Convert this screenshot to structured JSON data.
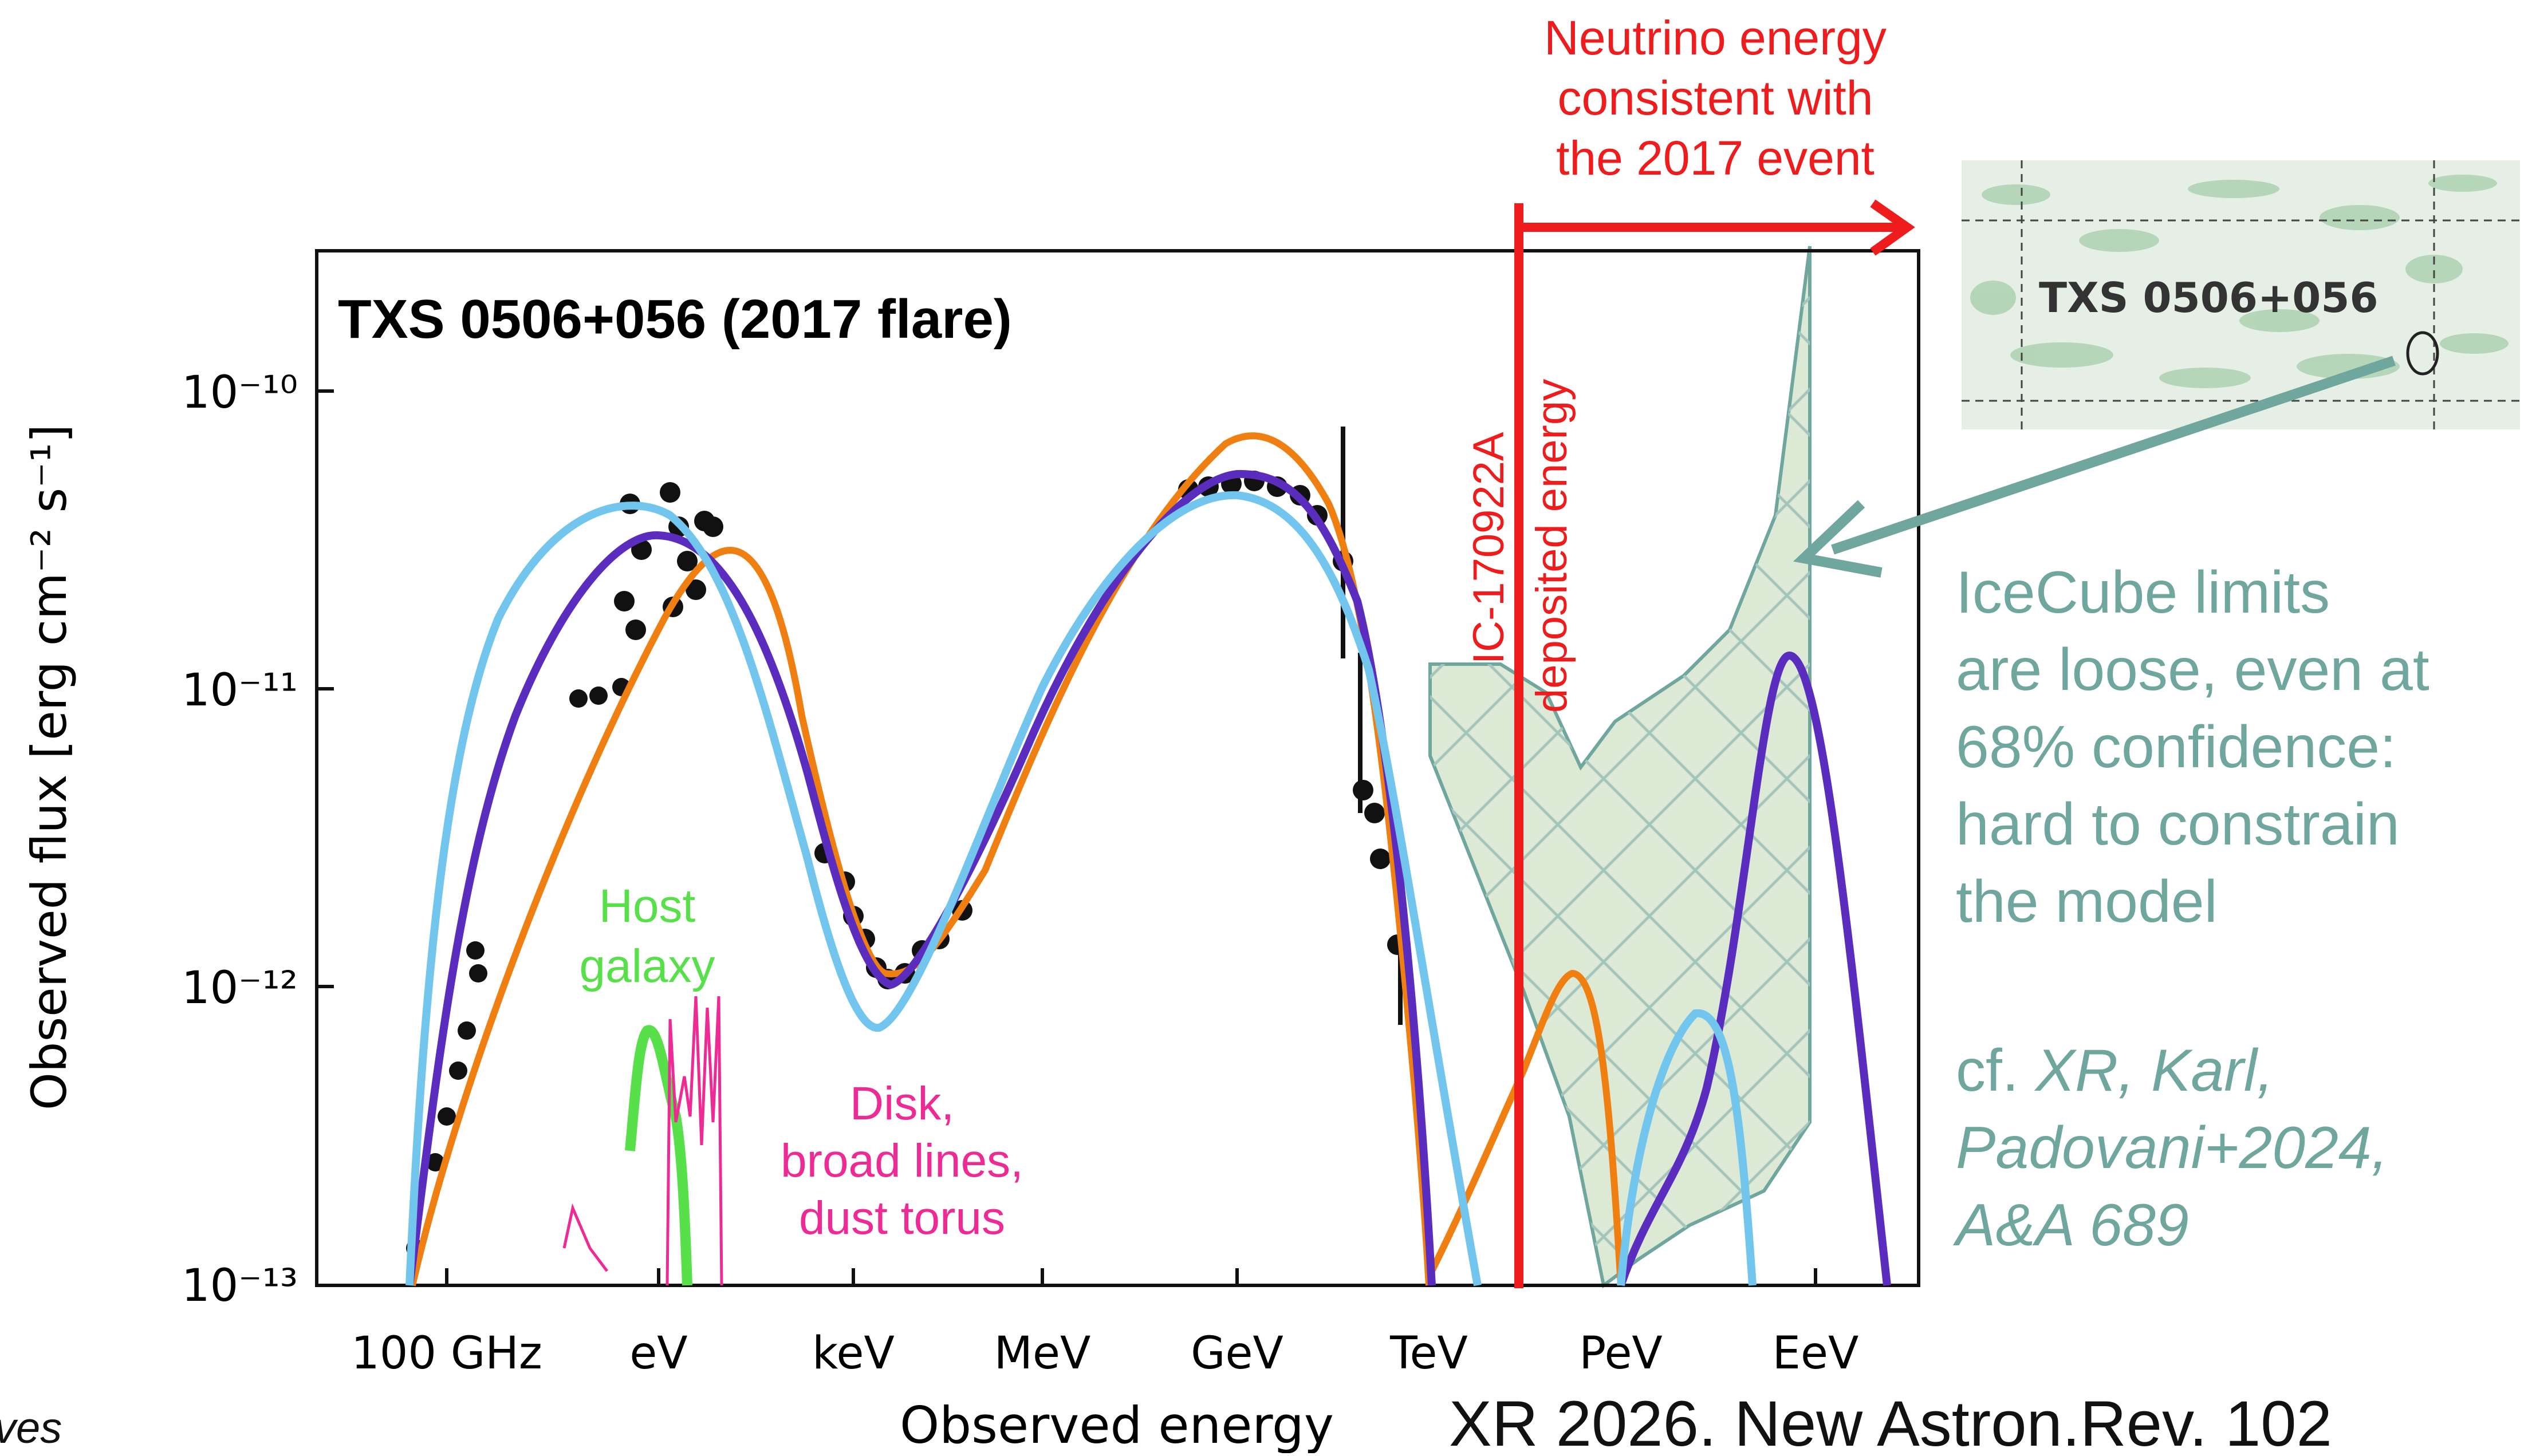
{
  "chart_data": {
    "type": "line",
    "title": "TXS 0506+056 (2017 flare)",
    "xlabel": "Observed energy",
    "ylabel": "Observed flux [erg cm⁻² s⁻¹]",
    "yscale": "log",
    "ylim": [
      1e-13,
      3e-10
    ],
    "y_ticks": [
      {
        "value": 1e-10,
        "label": "10⁻¹⁰"
      },
      {
        "value": 1e-11,
        "label": "10⁻¹¹"
      },
      {
        "value": 1e-12,
        "label": "10⁻¹²"
      },
      {
        "value": 1e-13,
        "label": "10⁻¹³"
      }
    ],
    "x_ticks": [
      "100 GHz",
      "eV",
      "keV",
      "MeV",
      "GeV",
      "TeV",
      "PeV",
      "EeV"
    ],
    "series": [
      {
        "color": "#f07f12",
        "points": [
          [
            "100 GHz",
            1e-13
          ],
          [
            "eV",
            1.2e-11
          ],
          [
            "eV",
            3e-11
          ],
          [
            "keV",
            1.8e-12
          ],
          [
            "keV",
            1.1e-12
          ],
          [
            "MeV",
            1e-11
          ],
          [
            "GeV",
            6.5e-11
          ],
          [
            "TeV",
            1e-12
          ],
          [
            "TeV",
            1e-13
          ],
          [
            "PeV",
            1e-12
          ],
          [
            "PeV",
            1e-13
          ]
        ]
      },
      {
        "color": "#5b2dbf",
        "points": [
          [
            "100 GHz",
            1e-13
          ],
          [
            "eV",
            3.2e-11
          ],
          [
            "keV",
            1e-12
          ],
          [
            "GeV",
            5.5e-11
          ],
          [
            "TeV",
            1e-13
          ],
          [
            "PeV",
            2e-13
          ],
          [
            "EeV",
            1.3e-11
          ],
          [
            "EeV",
            1e-13
          ]
        ]
      },
      {
        "color": "#72c6ee",
        "points": [
          [
            "100 GHz",
            1e-13
          ],
          [
            "eV",
            4e-11
          ],
          [
            "keV",
            7e-13
          ],
          [
            "GeV",
            4.5e-11
          ],
          [
            "TeV",
            1e-13
          ],
          [
            "PeV",
            2e-12
          ],
          [
            "PeV",
            1e-13
          ]
        ]
      }
    ],
    "legend": "none",
    "grid": false
  },
  "annotations": {
    "host": [
      "Host",
      "galaxy"
    ],
    "disk": [
      "Disk,",
      "broad lines,",
      "dust torus"
    ],
    "neutrino_range": [
      "Neutrino energy",
      "consistent with",
      "the 2017 event"
    ],
    "ic_event": [
      "IC-170922A",
      "deposited energy"
    ],
    "icecube": [
      "IceCube limits",
      "are loose, even at",
      "68% confidence:",
      "hard to constrain",
      "the model"
    ],
    "cf_prefix": "cf. ",
    "cf_ref": [
      "XR, Karl,",
      "Padovani+2024,",
      "A&A 689"
    ],
    "sky_label": "TXS 0506+056",
    "citation": "XR 2026. New Astron.Rev. 102",
    "corner_text": "ves"
  },
  "colors": {
    "orange": "#f07f12",
    "purple": "#5b2dbf",
    "lightblue": "#72c6ee",
    "red": "#ee1c1c",
    "teal": "#6fa69e",
    "magenta": "#ee2a94",
    "green": "#58e04a",
    "band_fill": "#dce9d5"
  }
}
